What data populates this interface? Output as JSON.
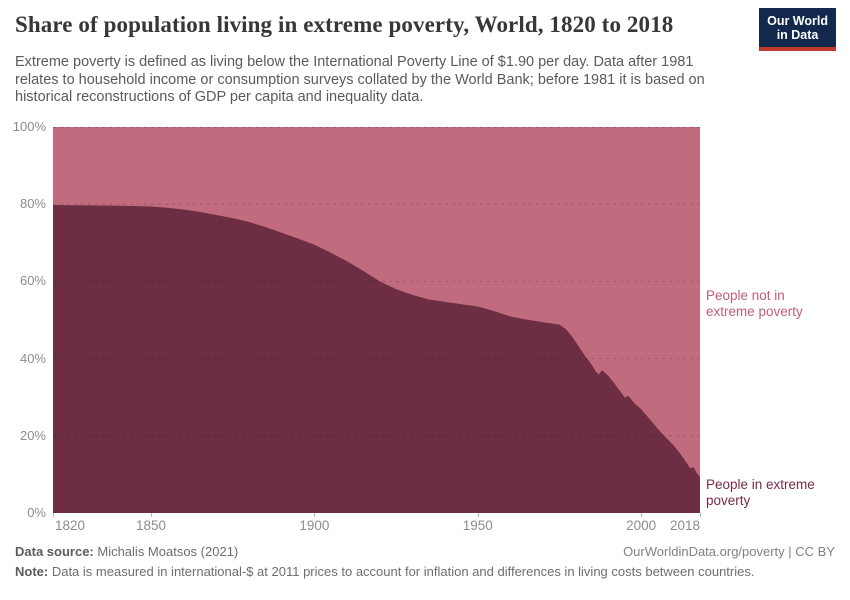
{
  "header": {
    "title": "Share of population living in extreme poverty, World, 1820 to 2018",
    "subtitle": "Extreme poverty is defined as living below the International Poverty Line of $1.90 per day. Data after 1981 relates to household income or consumption surveys collated by the World Bank; before 1981 it is based on historical reconstructions of GDP per capita and inequality data.",
    "logo": {
      "line1": "Our World",
      "line2": "in Data",
      "bg_color": "#12294d",
      "bar_color": "#c0392e"
    }
  },
  "chart_data": {
    "type": "area",
    "stacked": true,
    "title": "Share of population living in extreme poverty, World, 1820 to 2018",
    "xlabel": "",
    "ylabel": "",
    "xlim": [
      1820,
      2018
    ],
    "ylim": [
      0,
      100
    ],
    "grid": "dashed horizontal",
    "legend_position": "right-edge-labels",
    "x_ticks": [
      1820,
      1850,
      1900,
      1950,
      2000,
      2018
    ],
    "y_ticks": [
      "100%",
      "80%",
      "60%",
      "40%",
      "20%",
      "0%"
    ],
    "x": [
      1820,
      1830,
      1840,
      1850,
      1855,
      1860,
      1865,
      1870,
      1875,
      1880,
      1885,
      1890,
      1895,
      1900,
      1905,
      1910,
      1915,
      1920,
      1925,
      1930,
      1935,
      1940,
      1945,
      1950,
      1955,
      1960,
      1965,
      1970,
      1975,
      1977,
      1979,
      1981,
      1983,
      1985,
      1986,
      1987,
      1988,
      1989,
      1990,
      1992,
      1994,
      1995,
      1996,
      1997,
      1998,
      2000,
      2002,
      2004,
      2006,
      2008,
      2010,
      2012,
      2014,
      2015,
      2016,
      2017,
      2018
    ],
    "series": [
      {
        "name": "People in extreme poverty",
        "color": "#6d2d42",
        "values": [
          79.8,
          79.7,
          79.6,
          79.4,
          79.1,
          78.6,
          78.0,
          77.2,
          76.4,
          75.4,
          74.1,
          72.6,
          71.1,
          69.5,
          67.4,
          65.2,
          62.7,
          60.0,
          58.0,
          56.5,
          55.3,
          54.7,
          54.1,
          53.5,
          52.3,
          50.9,
          50.1,
          49.4,
          48.8,
          47.6,
          45.5,
          43.0,
          40.5,
          38.2,
          36.8,
          35.9,
          37.0,
          36.3,
          35.5,
          33.4,
          31.0,
          29.9,
          30.4,
          29.4,
          28.4,
          26.9,
          24.9,
          22.9,
          20.9,
          19.2,
          17.4,
          15.3,
          12.9,
          11.6,
          11.9,
          10.4,
          9.3
        ]
      },
      {
        "name": "People not in extreme poverty",
        "color": "#c06c7e",
        "values": [
          20.2,
          20.3,
          20.4,
          20.6,
          20.9,
          21.4,
          22.0,
          22.8,
          23.6,
          24.6,
          25.9,
          27.4,
          28.9,
          30.5,
          32.6,
          34.8,
          37.3,
          40.0,
          42.0,
          43.5,
          44.7,
          45.3,
          45.9,
          46.5,
          47.7,
          49.1,
          49.9,
          50.6,
          51.2,
          52.4,
          54.5,
          57.0,
          59.5,
          61.8,
          63.2,
          64.1,
          63.0,
          63.7,
          64.5,
          66.6,
          69.0,
          70.1,
          69.6,
          70.6,
          71.6,
          73.1,
          75.1,
          77.1,
          79.1,
          80.8,
          82.6,
          84.7,
          87.1,
          88.4,
          88.1,
          89.6,
          90.7
        ]
      }
    ]
  },
  "annotations": {
    "not_poor": "People not in extreme poverty",
    "poor": "People in extreme poverty"
  },
  "footer": {
    "source_label": "Data source:",
    "source_text": " Michalis Moatsos (2021)",
    "license": "OurWorldinData.org/poverty | CC BY",
    "note_label": "Note:",
    "note_text": " Data is measured in international-$ at 2011 prices to account for inflation and differences in living costs between countries."
  }
}
